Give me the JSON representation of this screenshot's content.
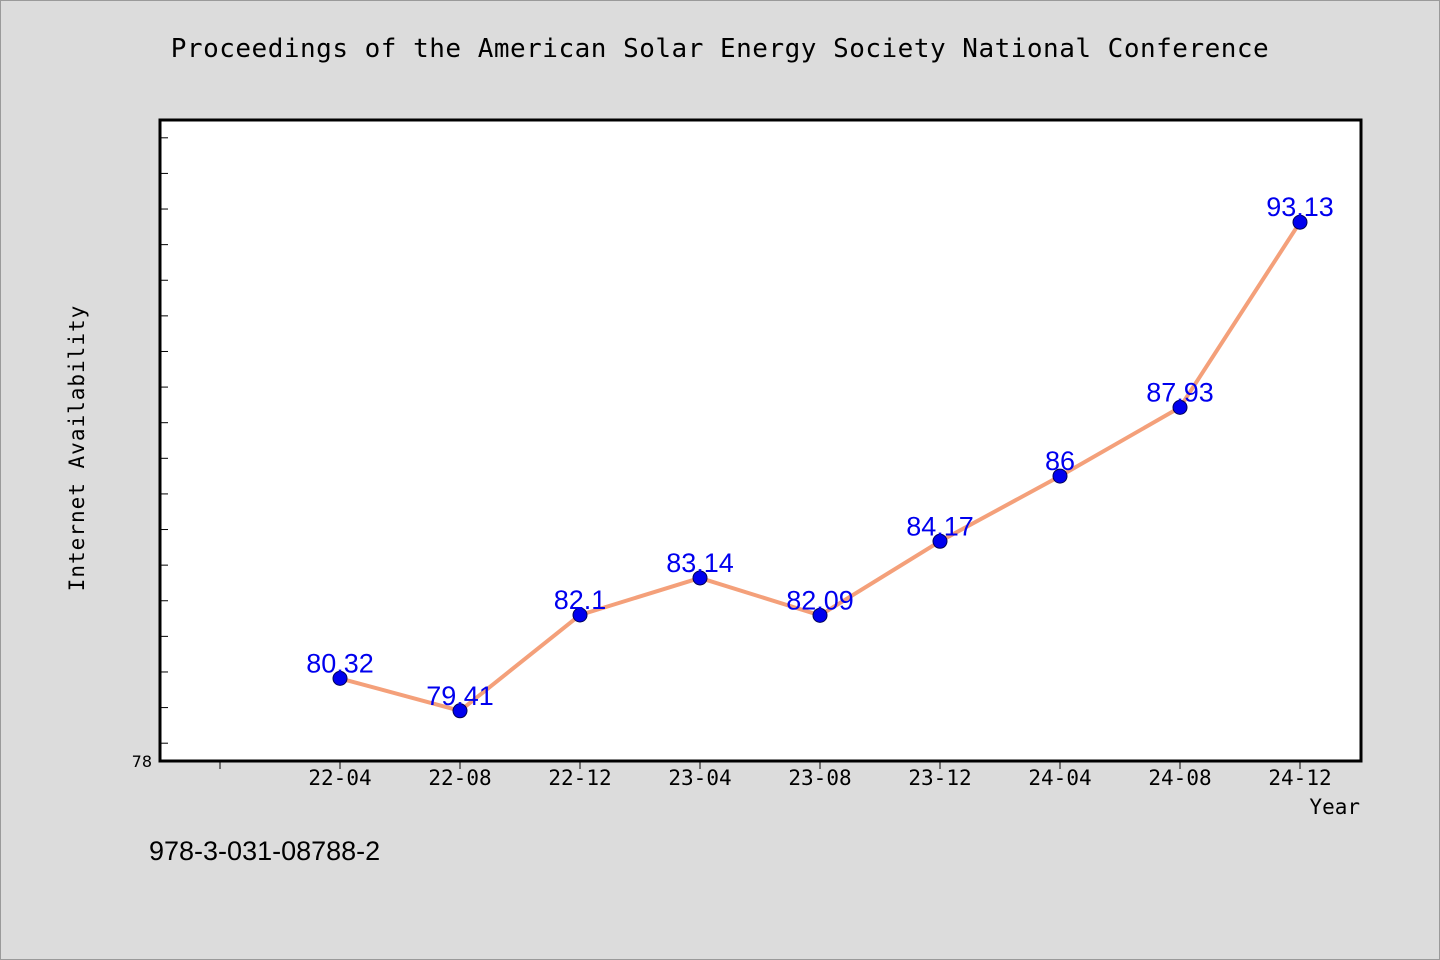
{
  "title": "Proceedings of the American Solar Energy Society National Conference",
  "footer_text": "978-3-031-08788-2",
  "colors": {
    "background": "#dcdcdc",
    "plot_background": "#ffffff",
    "line": "#f4a07a",
    "marker": "#0000ee",
    "data_label": "#0000ee"
  },
  "chart_data": {
    "type": "line",
    "title": "Proceedings of the American Solar Energy Society National Conference",
    "xlabel": "Year",
    "ylabel": "Internet Availability",
    "categories": [
      "22-04",
      "22-08",
      "22-12",
      "23-04",
      "23-08",
      "23-12",
      "24-04",
      "24-08",
      "24-12"
    ],
    "series": [
      {
        "values": [
          80.32,
          79.41,
          82.1,
          83.14,
          82.09,
          84.17,
          86,
          87.93,
          93.13
        ]
      }
    ],
    "data_labels": [
      "80.32",
      "79.41",
      "82.1",
      "83.14",
      "82.09",
      "84.17",
      "86",
      "87.93",
      "93.13"
    ],
    "ylim": [
      78,
      96
    ],
    "y_tick_labels": [
      "78"
    ],
    "grid": false,
    "legend": "none"
  }
}
